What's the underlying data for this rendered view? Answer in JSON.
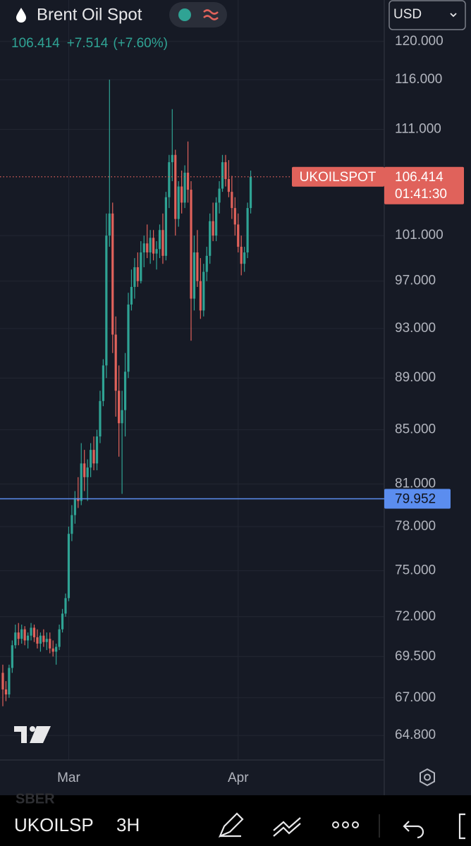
{
  "header": {
    "title": "Brent Oil Spot",
    "price": "106.414",
    "change": "+7.514",
    "change_pct": "(+7.60%)",
    "currency": "USD"
  },
  "chart_data": {
    "type": "candlestick",
    "categories": [
      null,
      null,
      null,
      null,
      null,
      null,
      null,
      null,
      null,
      null,
      null,
      null,
      null,
      null,
      null,
      null,
      null,
      null,
      null,
      null,
      null,
      "Mar",
      null,
      null,
      null,
      null,
      null,
      null,
      null,
      null,
      null,
      null,
      null,
      null,
      null,
      null,
      null,
      null,
      null,
      null,
      null,
      null,
      null,
      null,
      null,
      null,
      null,
      null,
      null,
      null,
      null,
      null,
      null,
      null,
      null,
      null,
      null,
      null,
      null,
      null,
      null,
      null,
      null,
      null,
      null,
      null,
      null,
      null,
      null,
      null,
      null,
      null,
      null,
      null,
      null,
      "Apr",
      null,
      null,
      null,
      null
    ],
    "open": [
      68.5,
      67.5,
      67.2,
      68.8,
      70.2,
      71,
      70.6,
      71.2,
      70.5,
      70.8,
      71.3,
      70.7,
      70.3,
      70.8,
      70.4,
      70.6,
      70,
      69.8,
      70.1,
      71.2,
      72.2,
      73.2,
      77.5,
      78.8,
      80,
      79.8,
      82.5,
      81.5,
      82.2,
      83.5,
      82.5,
      84.5,
      87.2,
      90,
      101,
      103,
      92.5,
      88,
      85.5,
      86.5,
      89.5,
      95,
      96.5,
      98.2,
      97,
      99.5,
      100.3,
      99.5,
      100.8,
      99.4,
      99.8,
      101.5,
      99.2,
      104.5,
      107.8,
      108.5,
      102.5,
      105.5,
      104,
      106.8,
      105.2,
      95.5,
      99.5,
      97,
      94.5,
      97.8,
      99.2,
      102.3,
      101,
      104,
      105.3,
      107.8,
      106.2,
      105,
      103.5,
      102,
      100,
      98.5,
      99.5,
      103.5
    ],
    "high": [
      69,
      68,
      69,
      70.5,
      71.5,
      71.6,
      71.5,
      71.4,
      71,
      71.6,
      71.5,
      71.2,
      71,
      71.2,
      71,
      71,
      70.5,
      70.3,
      71.5,
      72.5,
      73.5,
      78,
      79.5,
      80.5,
      81.5,
      84,
      83.5,
      82.8,
      84,
      84.5,
      85,
      88,
      90.5,
      103,
      116,
      104,
      94,
      90,
      88,
      91,
      96,
      98,
      99,
      99.5,
      100.5,
      101,
      102,
      101.5,
      101.5,
      100.5,
      102,
      103,
      105,
      108.5,
      113,
      109,
      106,
      107,
      107.5,
      109.8,
      106,
      101,
      101.5,
      99,
      98.5,
      100,
      103,
      104,
      104.5,
      106,
      108.5,
      108.5,
      108,
      106.5,
      104.5,
      103,
      101,
      100,
      104,
      107
    ],
    "low": [
      66.5,
      66.8,
      67,
      68.5,
      70,
      70.2,
      70.3,
      70.2,
      70,
      70.5,
      70.4,
      70,
      69.8,
      70.1,
      69.9,
      69.7,
      69.5,
      69,
      69.9,
      71,
      72,
      73,
      77,
      78.2,
      79.3,
      79.5,
      80.5,
      79.8,
      81.5,
      82,
      82,
      84,
      86.8,
      89,
      100,
      91,
      86,
      83,
      80.3,
      84.5,
      89,
      94.5,
      95.5,
      96.5,
      96.8,
      98.2,
      99,
      98.5,
      98.8,
      98,
      99,
      98.5,
      98.8,
      103.5,
      106,
      101,
      101.8,
      103,
      103.5,
      104,
      92,
      94.5,
      96.5,
      93.8,
      94,
      97,
      98.5,
      100.5,
      100.5,
      103,
      105,
      105.5,
      104.5,
      102.5,
      101,
      99.5,
      97.5,
      97.8,
      99,
      103
    ],
    "close": [
      67.5,
      67.2,
      68.8,
      70.2,
      71,
      70.6,
      71.2,
      70.5,
      70.8,
      71.3,
      70.7,
      70.3,
      70.8,
      70.4,
      70.6,
      70,
      69.8,
      70.1,
      71.2,
      72.2,
      73.2,
      77.5,
      78.8,
      80,
      79.8,
      82.5,
      81.5,
      82.2,
      83.5,
      82.5,
      84.5,
      87.2,
      90,
      101,
      103,
      92.5,
      88,
      85.5,
      86.5,
      89.5,
      95,
      96.5,
      98.2,
      97,
      99.5,
      100.3,
      99.5,
      100.8,
      99.4,
      99.8,
      101.5,
      99.2,
      104.5,
      107.8,
      108.5,
      102.5,
      105.5,
      104,
      106.8,
      105.2,
      95.5,
      99.5,
      97,
      94.5,
      97.8,
      99.2,
      102.3,
      101,
      104,
      105.3,
      107.8,
      106.2,
      105,
      103.5,
      102,
      100,
      98.5,
      99.5,
      103.5,
      106.414
    ],
    "up_color": "#2fa394",
    "down_color": "#e0625b",
    "log_scale": true,
    "grid": true,
    "ylim": [
      63.4,
      124.5
    ],
    "yticks": [
      {
        "value": 120,
        "label": "120.000"
      },
      {
        "value": 116,
        "label": "116.000"
      },
      {
        "value": 111,
        "label": "111.000"
      },
      {
        "value": 101,
        "label": "101.000"
      },
      {
        "value": 97,
        "label": "97.000"
      },
      {
        "value": 93,
        "label": "93.000"
      },
      {
        "value": 89,
        "label": "89.000"
      },
      {
        "value": 85,
        "label": "85.000"
      },
      {
        "value": 81,
        "label": "81.000"
      },
      {
        "value": 78,
        "label": "78.000"
      },
      {
        "value": 75,
        "label": "75.000"
      },
      {
        "value": 72,
        "label": "72.000"
      },
      {
        "value": 69.5,
        "label": "69.500"
      },
      {
        "value": 67,
        "label": "67.000"
      },
      {
        "value": 64.8,
        "label": "64.800"
      }
    ],
    "price_line": {
      "label": "UKOILSPOT",
      "value": 106.414,
      "countdown": "01:41:30",
      "color": "#e0625b"
    },
    "level_line": {
      "value": 79.952,
      "color": "#5b8def"
    }
  },
  "toolbar": {
    "watermark": "SBER",
    "symbol": "UKOILSP",
    "interval": "3H"
  }
}
